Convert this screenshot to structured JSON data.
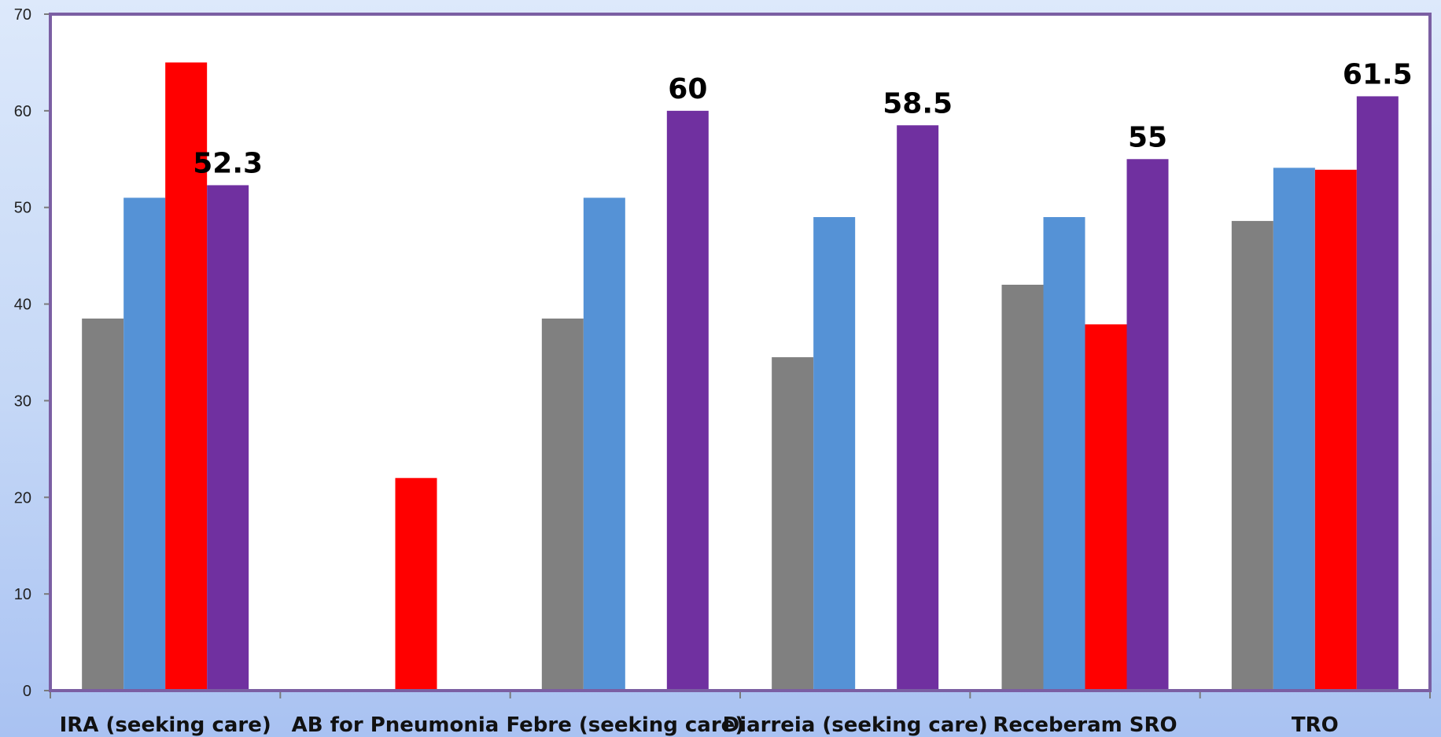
{
  "chart_data": {
    "type": "bar",
    "title": "",
    "xlabel": "",
    "ylabel": "",
    "ylim": [
      0,
      70
    ],
    "yticks": [
      0,
      10,
      20,
      30,
      40,
      50,
      60,
      70
    ],
    "grid": false,
    "legend": "none",
    "categories": [
      "IRA (seeking care)",
      "AB for Pneumonia",
      "Febre (seeking care)",
      "Diarreia (seeking care)",
      "Receberam SRO",
      "TRO"
    ],
    "series": [
      {
        "color": "#808080",
        "values": [
          38.5,
          null,
          38.5,
          34.5,
          42,
          48.6
        ]
      },
      {
        "color": "#5592d6",
        "values": [
          51,
          null,
          51,
          49,
          49,
          54.1
        ]
      },
      {
        "color": "#ff0000",
        "values": [
          65,
          22,
          null,
          null,
          37.9,
          53.9
        ]
      },
      {
        "color": "#7030a0",
        "values": [
          52.3,
          null,
          60,
          58.5,
          55,
          61.5
        ]
      }
    ],
    "data_labels": [
      {
        "series": 3,
        "category": 0,
        "text": "52.3"
      },
      {
        "series": 3,
        "category": 2,
        "text": "60"
      },
      {
        "series": 3,
        "category": 3,
        "text": "58.5"
      },
      {
        "series": 3,
        "category": 4,
        "text": "55"
      },
      {
        "series": 3,
        "category": 5,
        "text": "61.5"
      }
    ],
    "plot_border_color": "#7b5fa3"
  }
}
